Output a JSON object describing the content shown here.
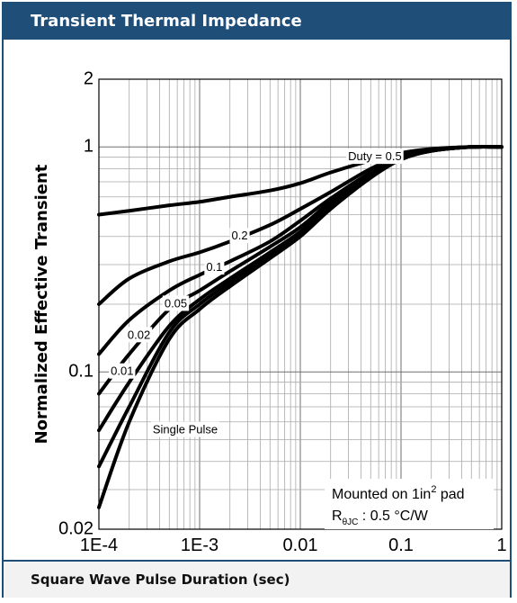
{
  "header": {
    "title": "Transient Thermal Impedance"
  },
  "footer": {
    "xlabel": "Square Wave Pulse Duration (sec)"
  },
  "chart_data": {
    "type": "line",
    "title": "Transient Thermal Impedance",
    "xlabel": "Square Wave Pulse Duration (sec)",
    "ylabel": "Normalized Effective Transient",
    "xscale": "log",
    "yscale": "log",
    "xlim": [
      0.0001,
      1
    ],
    "ylim": [
      0.02,
      2
    ],
    "grid": true,
    "xticks": [
      {
        "value": 0.0001,
        "label": "1E-4"
      },
      {
        "value": 0.001,
        "label": "1E-3"
      },
      {
        "value": 0.01,
        "label": "0.01"
      },
      {
        "value": 0.1,
        "label": "0.1"
      },
      {
        "value": 1,
        "label": "1"
      }
    ],
    "yticks": [
      {
        "value": 0.02,
        "label": "0.02"
      },
      {
        "value": 0.1,
        "label": "0.1"
      },
      {
        "value": 1,
        "label": "1"
      },
      {
        "value": 2,
        "label": "2"
      }
    ],
    "series": [
      {
        "name": "Duty = 0.5",
        "label": "Duty = 0.5",
        "x": [
          0.0001,
          0.0002,
          0.0005,
          0.001,
          0.002,
          0.005,
          0.01,
          0.02,
          0.05,
          0.1,
          0.2,
          0.5,
          1
        ],
        "y": [
          0.5,
          0.52,
          0.55,
          0.57,
          0.6,
          0.64,
          0.69,
          0.77,
          0.87,
          0.94,
          0.98,
          1.0,
          1.0
        ]
      },
      {
        "name": "0.2",
        "label": "0.2",
        "x": [
          0.0001,
          0.0002,
          0.0005,
          0.001,
          0.002,
          0.005,
          0.01,
          0.02,
          0.05,
          0.1,
          0.2,
          0.5,
          1
        ],
        "y": [
          0.2,
          0.26,
          0.31,
          0.34,
          0.38,
          0.45,
          0.53,
          0.63,
          0.8,
          0.91,
          0.97,
          1.0,
          1.0
        ]
      },
      {
        "name": "0.1",
        "label": "0.1",
        "x": [
          0.0001,
          0.0002,
          0.0005,
          0.001,
          0.002,
          0.005,
          0.01,
          0.02,
          0.05,
          0.1,
          0.2,
          0.5,
          1
        ],
        "y": [
          0.12,
          0.17,
          0.23,
          0.27,
          0.31,
          0.38,
          0.47,
          0.59,
          0.77,
          0.9,
          0.97,
          1.0,
          1.0
        ]
      },
      {
        "name": "0.05",
        "label": "0.05",
        "x": [
          0.0001,
          0.0002,
          0.0005,
          0.001,
          0.002,
          0.005,
          0.01,
          0.02,
          0.05,
          0.1,
          0.2,
          0.5,
          1
        ],
        "y": [
          0.08,
          0.12,
          0.19,
          0.23,
          0.28,
          0.36,
          0.44,
          0.57,
          0.76,
          0.89,
          0.96,
          1.0,
          1.0
        ]
      },
      {
        "name": "0.02",
        "label": "0.02",
        "x": [
          0.0001,
          0.0002,
          0.0005,
          0.001,
          0.002,
          0.005,
          0.01,
          0.02,
          0.05,
          0.1,
          0.2,
          0.5,
          1
        ],
        "y": [
          0.055,
          0.09,
          0.16,
          0.21,
          0.26,
          0.34,
          0.42,
          0.55,
          0.75,
          0.89,
          0.96,
          1.0,
          1.0
        ]
      },
      {
        "name": "0.01",
        "label": "0.01",
        "x": [
          0.0001,
          0.0002,
          0.0005,
          0.001,
          0.002,
          0.005,
          0.01,
          0.02,
          0.05,
          0.1,
          0.2,
          0.5,
          1
        ],
        "y": [
          0.038,
          0.07,
          0.15,
          0.2,
          0.25,
          0.33,
          0.41,
          0.54,
          0.74,
          0.88,
          0.96,
          1.0,
          1.0
        ]
      },
      {
        "name": "Single Pulse",
        "label": "Single Pulse",
        "x": [
          0.0001,
          0.0002,
          0.0005,
          0.001,
          0.002,
          0.005,
          0.01,
          0.02,
          0.05,
          0.1,
          0.2,
          0.5,
          1
        ],
        "y": [
          0.025,
          0.06,
          0.14,
          0.19,
          0.24,
          0.32,
          0.4,
          0.53,
          0.73,
          0.88,
          0.96,
          1.0,
          1.0
        ]
      }
    ],
    "annotations": [
      {
        "text": "Duty = 0.5",
        "x": 0.055,
        "y": 0.9
      },
      {
        "text": "0.2",
        "x": 0.0025,
        "y": 0.4
      },
      {
        "text": "0.1",
        "x": 0.0014,
        "y": 0.29
      },
      {
        "text": "0.05",
        "x": 0.00058,
        "y": 0.2
      },
      {
        "text": "0.02",
        "x": 0.00025,
        "y": 0.145
      },
      {
        "text": "0.01",
        "x": 0.00017,
        "y": 0.1
      },
      {
        "text": "Single Pulse",
        "x": 0.00072,
        "y": 0.055
      }
    ],
    "note": {
      "line1_text": "Mounted on 1in",
      "line1_sup": "2",
      "line1_suffix": " pad",
      "line2_main": "R",
      "line2_sub": "θJC",
      "line2_value": " : 0.5 °C/W"
    }
  }
}
